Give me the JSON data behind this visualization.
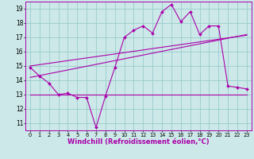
{
  "bg_color": "#cce8e8",
  "line_color": "#aa00aa",
  "grid_color": "#99cccc",
  "xlabel": "Windchill (Refroidissement éolien,°C)",
  "xlabel_fontsize": 6.0,
  "ytick_fontsize": 5.5,
  "xtick_fontsize": 4.8,
  "ylim": [
    10.5,
    19.5
  ],
  "xlim": [
    -0.5,
    23.5
  ],
  "yticks": [
    11,
    12,
    13,
    14,
    15,
    16,
    17,
    18,
    19
  ],
  "xticks": [
    0,
    1,
    2,
    3,
    4,
    5,
    6,
    7,
    8,
    9,
    10,
    11,
    12,
    13,
    14,
    15,
    16,
    17,
    18,
    19,
    20,
    21,
    22,
    23
  ],
  "line1_x": [
    0,
    1,
    2,
    3,
    4,
    5,
    6,
    7,
    8,
    9,
    10,
    11,
    12,
    13,
    14,
    15,
    16,
    17,
    18,
    19,
    20,
    21,
    22,
    23
  ],
  "line1_y": [
    14.9,
    14.3,
    13.8,
    13.0,
    13.1,
    12.8,
    12.8,
    10.7,
    12.9,
    14.9,
    17.0,
    17.5,
    17.8,
    17.3,
    18.8,
    19.3,
    18.1,
    18.8,
    17.2,
    17.8,
    17.8,
    13.6,
    13.5,
    13.4
  ],
  "line2_x": [
    0,
    23
  ],
  "line2_y": [
    14.2,
    17.2
  ],
  "line3_x": [
    0,
    23
  ],
  "line3_y": [
    15.0,
    17.15
  ],
  "flat_line_x": [
    0,
    23
  ],
  "flat_line_y": [
    13.0,
    13.0
  ]
}
